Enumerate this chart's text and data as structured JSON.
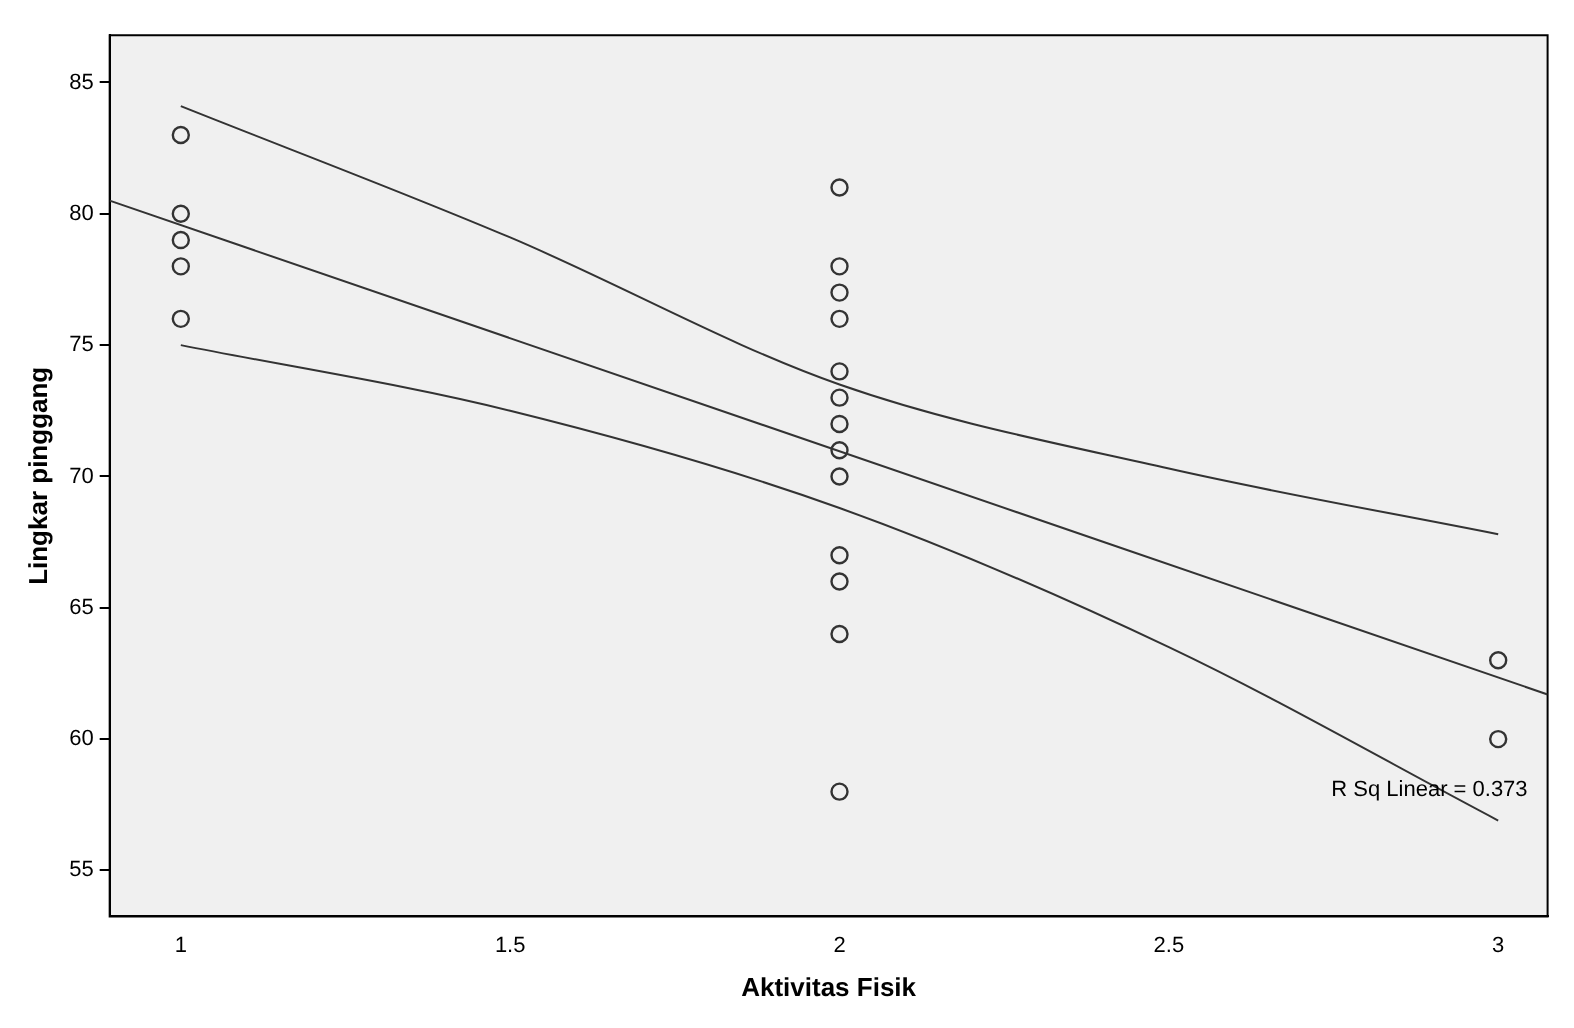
{
  "chart_data": {
    "type": "scatter",
    "xlabel": "Aktivitas Fisik",
    "ylabel": "Lingkar pinggang",
    "xlim": [
      0.892,
      3.075
    ],
    "ylim": [
      53.25,
      86.8
    ],
    "xticks": [
      1,
      1.5,
      2,
      2.5,
      3
    ],
    "yticks": [
      55,
      60,
      65,
      70,
      75,
      80,
      85
    ],
    "grid": false,
    "legend": false,
    "annotations": [
      "R Sq Linear = 0.373"
    ],
    "series": [
      {
        "type": "scatter",
        "marker": "circle",
        "color": "#333333",
        "x": [
          1,
          1,
          1,
          1,
          1,
          2,
          2,
          2,
          2,
          2,
          2,
          2,
          2,
          2,
          2,
          2,
          2,
          2,
          3,
          3
        ],
        "values": [
          83,
          80,
          79,
          78,
          76,
          81,
          78,
          77,
          76,
          74,
          73,
          72,
          71,
          70,
          67,
          66,
          64,
          58,
          63,
          60
        ]
      },
      {
        "type": "line",
        "marker": "none",
        "color": "#333333",
        "x": [
          0.892,
          3.075
        ],
        "values": [
          80.5,
          61.7
        ]
      },
      {
        "type": "line",
        "marker": "none",
        "color": "#333333",
        "x": [
          1,
          1.5,
          2,
          2.5,
          3
        ],
        "values": [
          84.1,
          79.1,
          73.5,
          70.3,
          67.8
        ]
      },
      {
        "type": "line",
        "marker": "none",
        "color": "#333333",
        "x": [
          1,
          1.5,
          2,
          2.5,
          3
        ],
        "values": [
          75,
          72.5,
          68.8,
          63.5,
          56.9
        ]
      }
    ]
  }
}
